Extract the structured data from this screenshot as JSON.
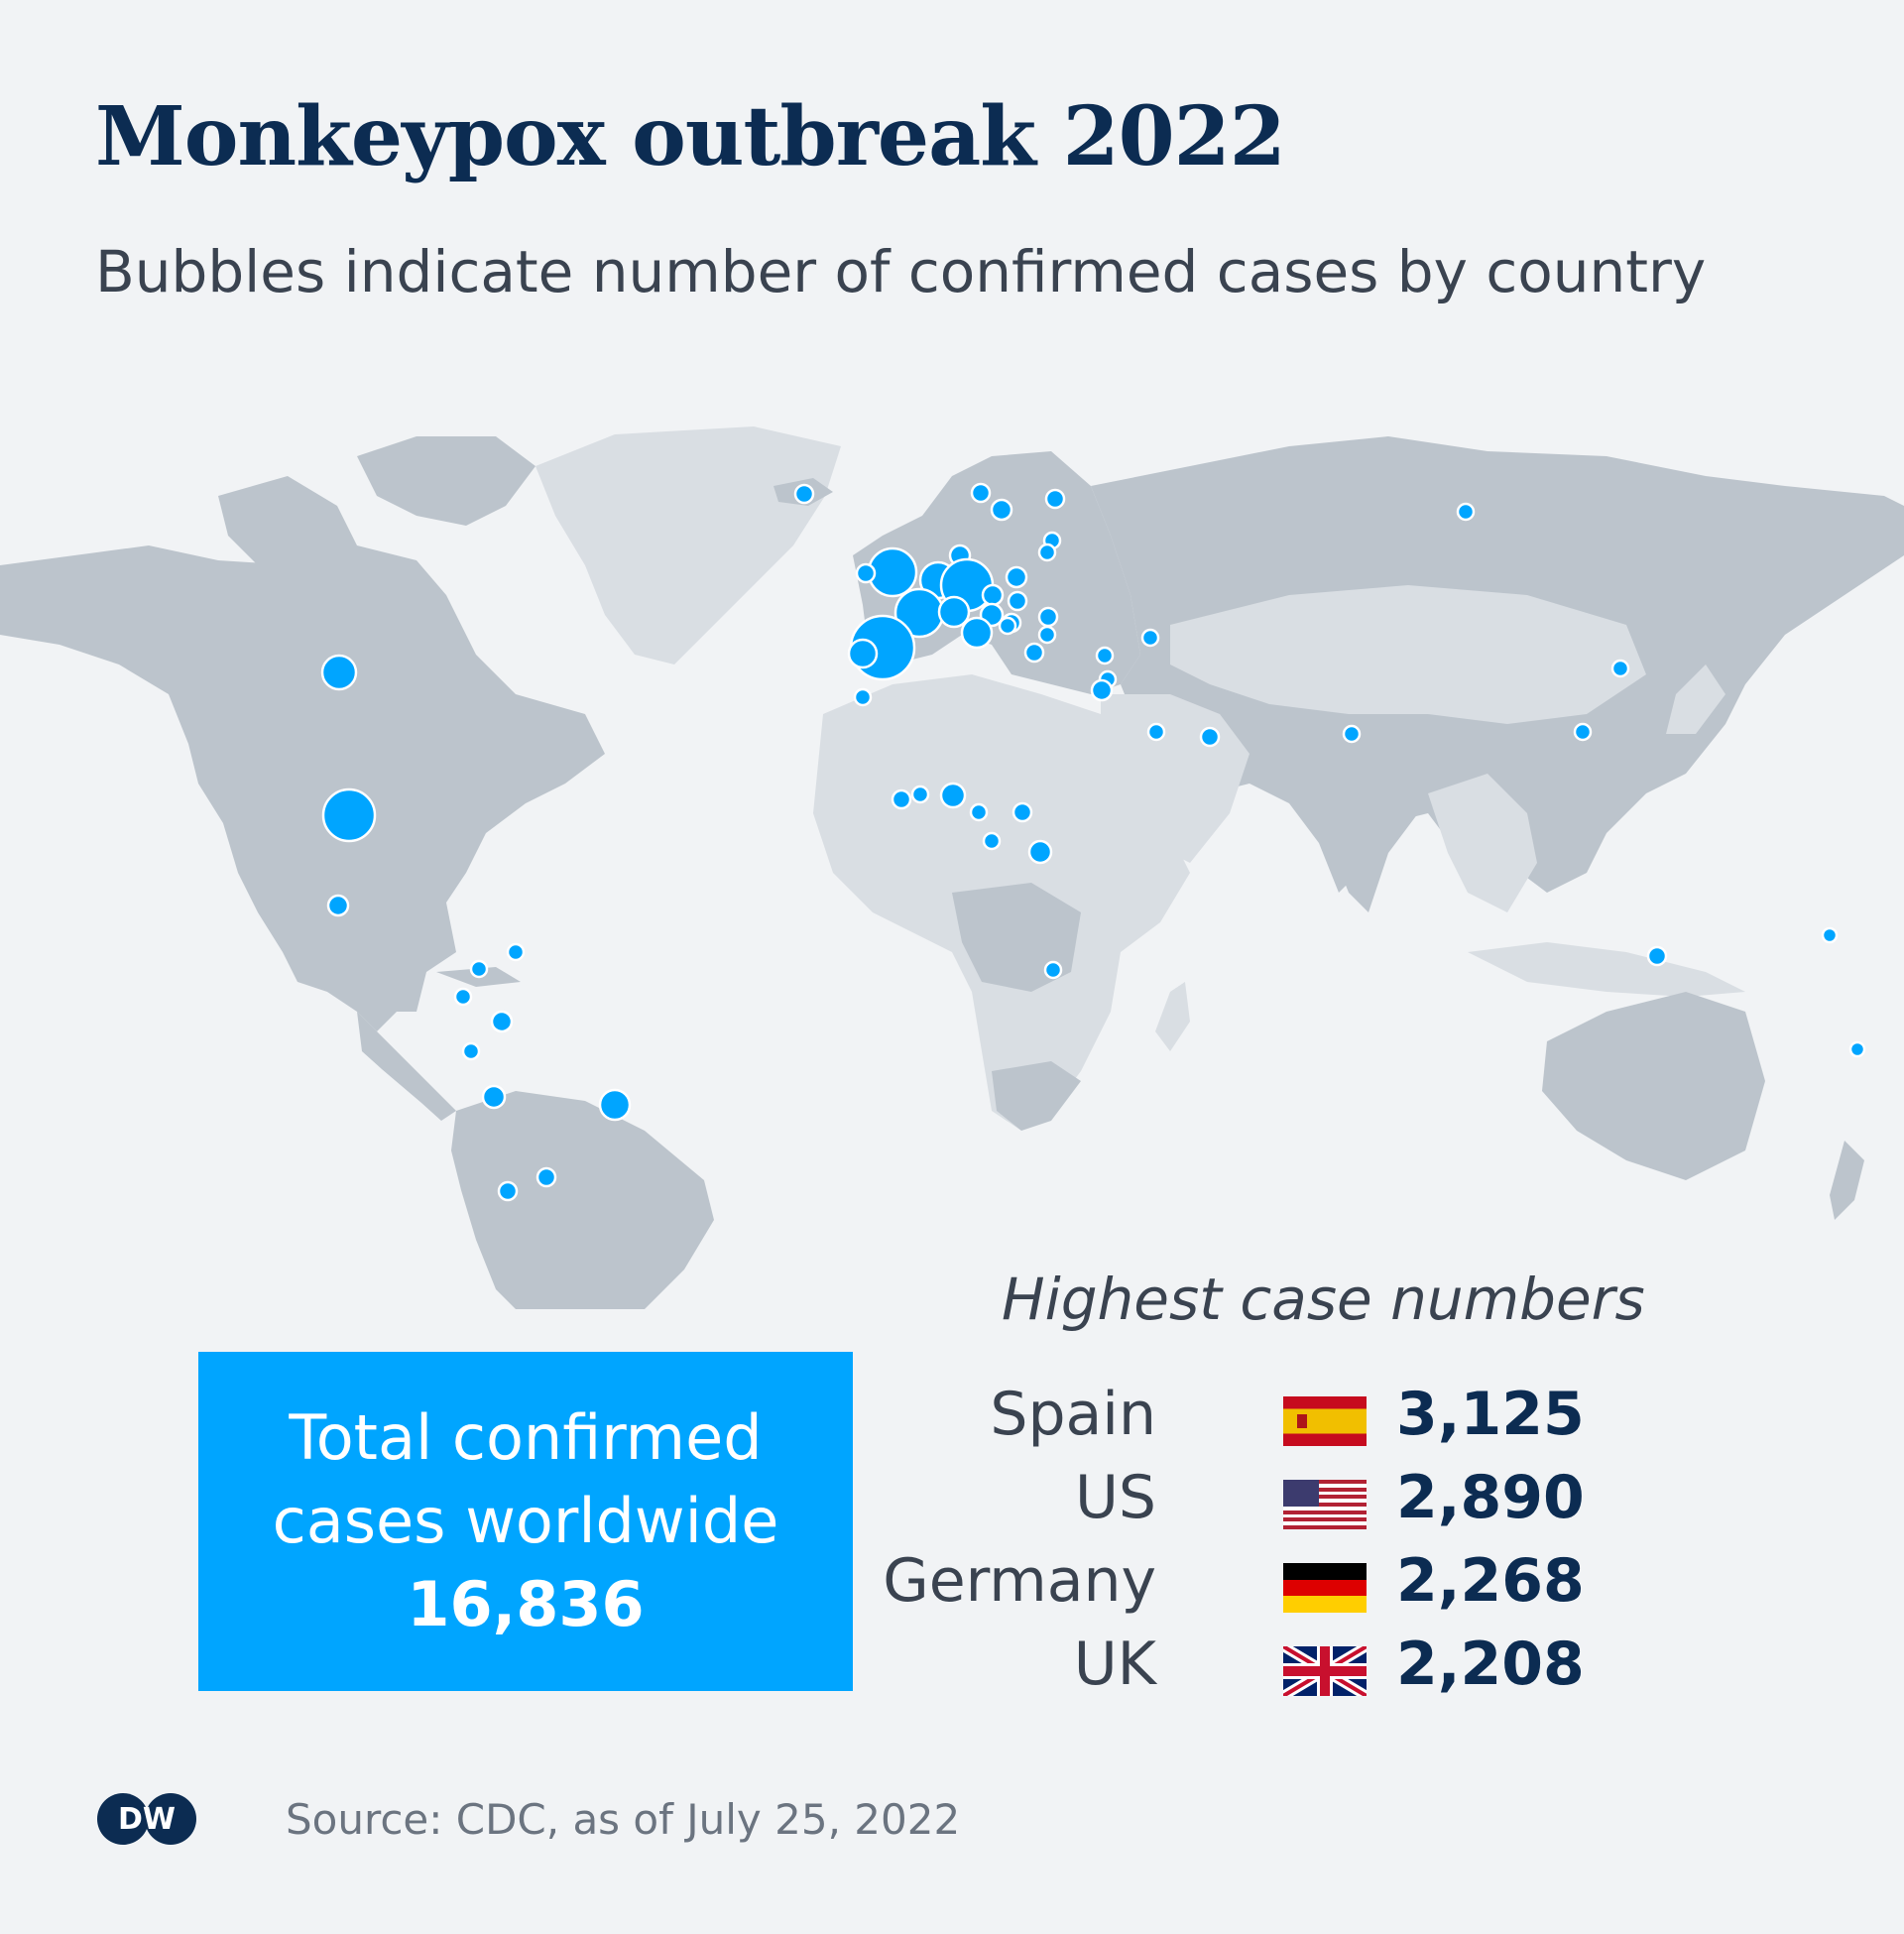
{
  "header": {
    "title": "Monkeypox outbreak 2022",
    "subtitle": "Bubbles indicate number of confirmed cases by country"
  },
  "map": {
    "land_color": "#bcc4cc",
    "light_land_color": "#d9dee3",
    "bubble_color": "#00a5ff",
    "bubble_stroke": "#ffffff"
  },
  "total_box": {
    "line1": "Total confirmed",
    "line2": "cases worldwide",
    "value": "16,836"
  },
  "highest": {
    "title": "Highest case numbers",
    "rows": [
      {
        "country": "Spain",
        "cases": "3,125",
        "flag": "spain-flag"
      },
      {
        "country": "US",
        "cases": "2,890",
        "flag": "us-flag"
      },
      {
        "country": "Germany",
        "cases": "2,268",
        "flag": "germany-flag"
      },
      {
        "country": "UK",
        "cases": "2,208",
        "flag": "uk-flag"
      }
    ]
  },
  "logo": {
    "text": "DW"
  },
  "source": "Source: CDC, as of July 25, 2022"
}
